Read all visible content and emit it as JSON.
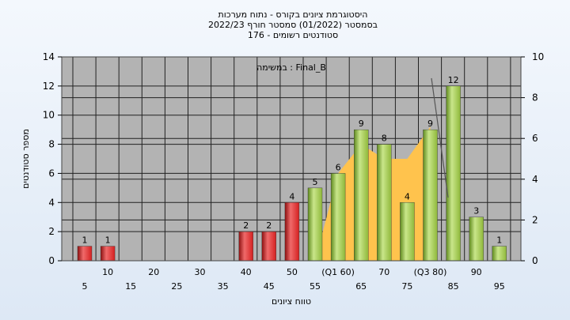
{
  "chart_data": {
    "type": "bar",
    "title_lines": [
      "היסטוגרמת ציונים בקורס - נתוח מערכות",
      "בסמסטר  (01/2022)  סמסטר חורף  2022/23",
      "סטודנטים רשומים - 176"
    ],
    "annotation": "במשימה : Final_B",
    "xlabel": "טווח ציונים",
    "ylabel": "מספר סטודנטים",
    "ylim": [
      0,
      14
    ],
    "y2lim": [
      0,
      10
    ],
    "yticks": [
      0,
      2,
      4,
      6,
      8,
      10,
      12,
      14
    ],
    "y2ticks": [
      0,
      2,
      4,
      6,
      8,
      10
    ],
    "categories": [
      "5",
      "10",
      "15",
      "20",
      "25",
      "30",
      "35",
      "40",
      "45",
      "50",
      "55",
      "(Q1 60)",
      "65",
      "70",
      "75",
      "(Q3 80)",
      "85",
      "90",
      "95"
    ],
    "values": [
      1,
      1,
      0,
      0,
      0,
      0,
      0,
      2,
      2,
      4,
      5,
      6,
      9,
      8,
      4,
      9,
      12,
      3,
      1
    ],
    "bar_colors": {
      "fail": "#d42020",
      "pass": "#8fb83a"
    },
    "pass_threshold": 55,
    "area_series": {
      "x": [
        55,
        60,
        65,
        70,
        75,
        80
      ],
      "y": [
        0,
        6,
        8,
        7,
        7,
        9.2
      ],
      "color": "#ffc34d"
    },
    "grid": true,
    "plot_background": "#b3b3b3"
  }
}
